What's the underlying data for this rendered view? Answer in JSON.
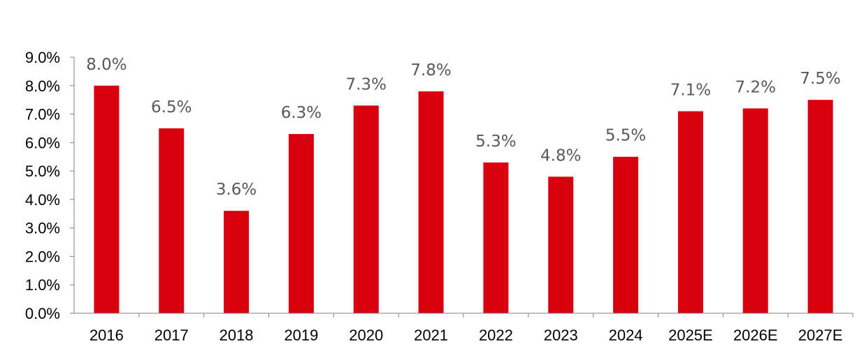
{
  "chart_data": {
    "type": "bar",
    "title": "",
    "xlabel": "",
    "ylabel": "",
    "categories": [
      "2016",
      "2017",
      "2018",
      "2019",
      "2020",
      "2021",
      "2022",
      "2023",
      "2024",
      "2025E",
      "2026E",
      "2027E"
    ],
    "values": [
      8.0,
      6.5,
      3.6,
      6.3,
      7.3,
      7.8,
      5.3,
      4.8,
      5.5,
      7.1,
      7.2,
      7.5
    ],
    "data_labels": [
      "8.0%",
      "6.5%",
      "3.6%",
      "6.3%",
      "7.3%",
      "7.8%",
      "5.3%",
      "4.8%",
      "5.5%",
      "7.1%",
      "7.2%",
      "7.5%"
    ],
    "ylim": [
      0,
      9
    ],
    "y_ticks": [
      "0.0%",
      "1.0%",
      "2.0%",
      "3.0%",
      "4.0%",
      "5.0%",
      "6.0%",
      "7.0%",
      "8.0%",
      "9.0%"
    ],
    "grid": false,
    "legend": "none",
    "bar_color": "#D9000F",
    "label_color": "#595959",
    "axis_color": "#7F7F7F"
  }
}
